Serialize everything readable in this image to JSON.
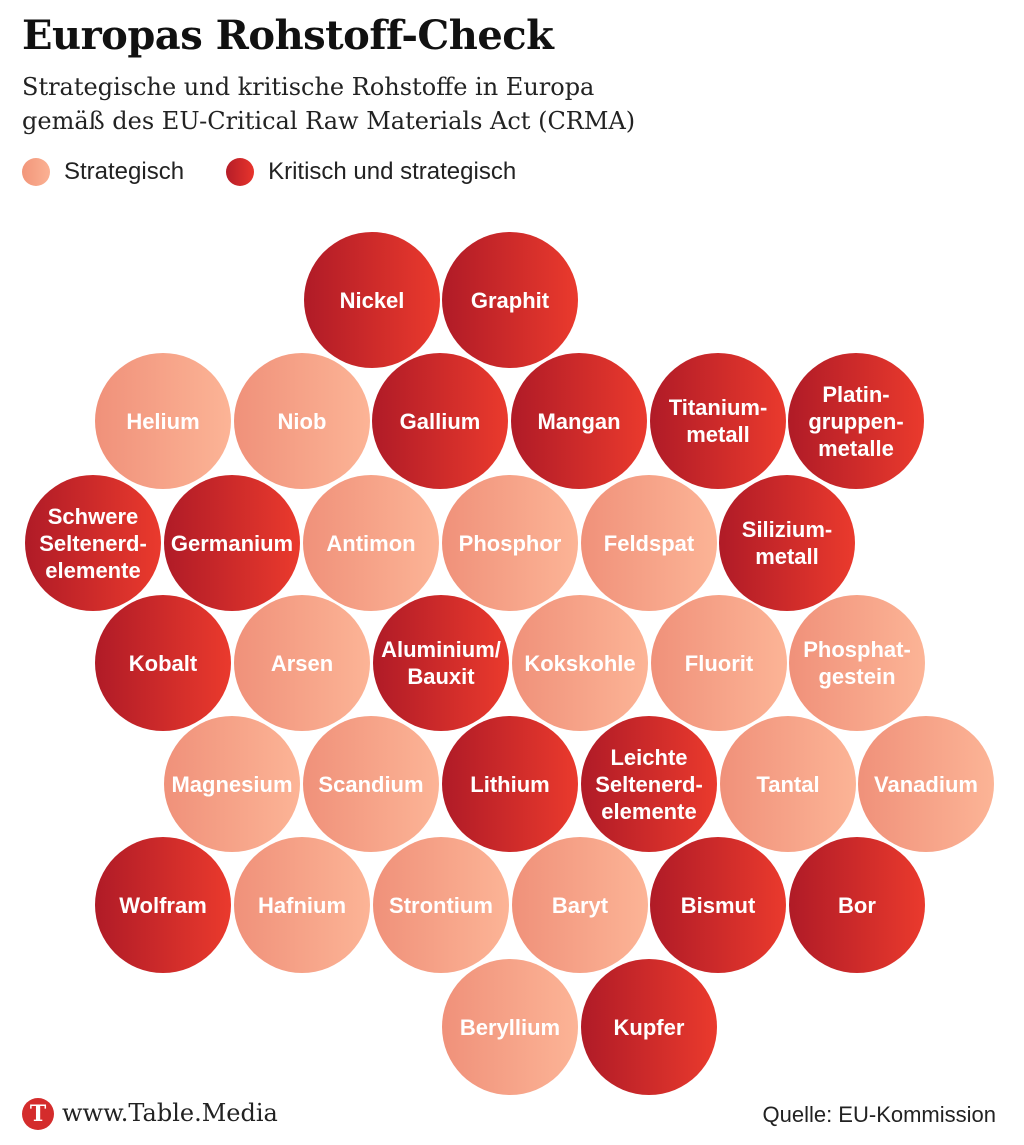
{
  "title": "Europas Rohstoff-Check",
  "subtitle": {
    "line1": "Strategische und kritische Rohstoffe in Europa",
    "line2": "gemäß des EU-Critical Raw Materials Act (CRMA)"
  },
  "legend": {
    "strategic": "Strategisch",
    "critical": "Kritisch und strategisch"
  },
  "colors": {
    "strategic": "#F8A488",
    "critical": "#D22A2A"
  },
  "materials": [
    {
      "label": "Nickel",
      "category": "critical"
    },
    {
      "label": "Graphit",
      "category": "critical"
    },
    {
      "label": "Helium",
      "category": "strategic"
    },
    {
      "label": "Niob",
      "category": "strategic"
    },
    {
      "label": "Gallium",
      "category": "critical"
    },
    {
      "label": "Mangan",
      "category": "critical"
    },
    {
      "label": "Titanium-\nmetall",
      "category": "critical"
    },
    {
      "label": "Platin-\ngruppen-\nmetalle",
      "category": "critical"
    },
    {
      "label": "Schwere\nSeltenerd-\nelemente",
      "category": "critical"
    },
    {
      "label": "Germanium",
      "category": "critical"
    },
    {
      "label": "Antimon",
      "category": "strategic"
    },
    {
      "label": "Phosphor",
      "category": "strategic"
    },
    {
      "label": "Feldspat",
      "category": "strategic"
    },
    {
      "label": "Silizium-\nmetall",
      "category": "critical"
    },
    {
      "label": "Kobalt",
      "category": "critical"
    },
    {
      "label": "Arsen",
      "category": "strategic"
    },
    {
      "label": "Aluminium/\nBauxit",
      "category": "critical"
    },
    {
      "label": "Kokskohle",
      "category": "strategic"
    },
    {
      "label": "Fluorit",
      "category": "strategic"
    },
    {
      "label": "Phosphat-\ngestein",
      "category": "strategic"
    },
    {
      "label": "Magnesium",
      "category": "strategic"
    },
    {
      "label": "Scandium",
      "category": "strategic"
    },
    {
      "label": "Lithium",
      "category": "critical"
    },
    {
      "label": "Leichte\nSeltenerd-\nelemente",
      "category": "critical"
    },
    {
      "label": "Tantal",
      "category": "strategic"
    },
    {
      "label": "Vanadium",
      "category": "strategic"
    },
    {
      "label": "Wolfram",
      "category": "critical"
    },
    {
      "label": "Hafnium",
      "category": "strategic"
    },
    {
      "label": "Strontium",
      "category": "strategic"
    },
    {
      "label": "Baryt",
      "category": "strategic"
    },
    {
      "label": "Bismut",
      "category": "critical"
    },
    {
      "label": "Bor",
      "category": "critical"
    },
    {
      "label": "Beryllium",
      "category": "strategic"
    },
    {
      "label": "Kupfer",
      "category": "critical"
    }
  ],
  "footer": {
    "logo_letter": "T",
    "url": "www.Table.Media",
    "source": "Quelle: EU-Kommission"
  }
}
